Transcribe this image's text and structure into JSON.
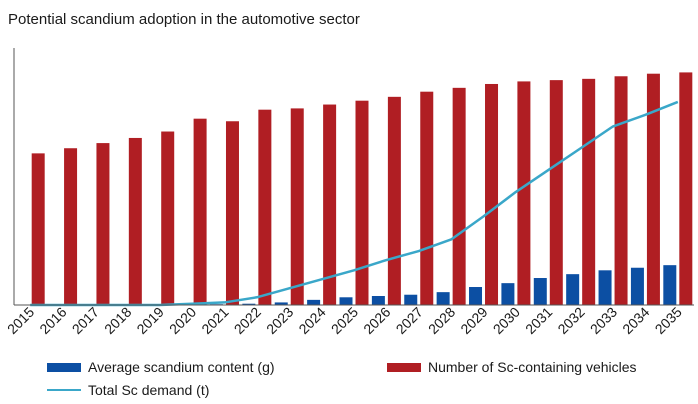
{
  "chart_data": {
    "type": "bar",
    "title": "Potential scandium adoption in the automotive sector",
    "xlabel": "",
    "ylabel": "",
    "grid": false,
    "legend_placement": "bottom",
    "categories": [
      "2015",
      "2016",
      "2017",
      "2018",
      "2019",
      "2020",
      "2021",
      "2022",
      "2023",
      "2024",
      "2025",
      "2026",
      "2027",
      "2028",
      "2029",
      "2030",
      "2031",
      "2032",
      "2033",
      "2034",
      "2035"
    ],
    "ylim": [
      0,
      100
    ],
    "series": [
      {
        "name": "Average scandium content (g)",
        "kind": "bar",
        "color": "#0c4fa3",
        "values": [
          0,
          0,
          0,
          0,
          0,
          0,
          0.3,
          0.5,
          1,
          2,
          3,
          3.5,
          4,
          5,
          7,
          8.5,
          10.5,
          12,
          13.5,
          14.5,
          15.5
        ]
      },
      {
        "name": "Number of Sc-containing vehicles",
        "kind": "bar",
        "color": "#b01e23",
        "values": [
          59,
          61,
          63,
          65,
          67.5,
          72.5,
          71.5,
          76,
          76.5,
          78,
          79.5,
          81,
          83,
          84.5,
          86,
          87,
          87.5,
          88,
          89,
          90,
          90.5
        ]
      },
      {
        "name": "Total Sc demand (t)",
        "kind": "line",
        "color": "#3aa7c9",
        "values": [
          0,
          0,
          0,
          0,
          0,
          0.5,
          1,
          3,
          6.5,
          10,
          13.5,
          17.5,
          21,
          25.5,
          34.5,
          44,
          52.5,
          61,
          69.5,
          74,
          79
        ]
      }
    ]
  }
}
